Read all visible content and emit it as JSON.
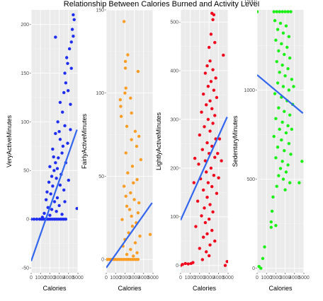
{
  "title": "Relationship Between Calories Burned and Activity Level",
  "chart_data": [
    {
      "type": "scatter",
      "xlabel": "Calories",
      "ylabel": "VeryActiveMinutes",
      "color": "#1f2ef0",
      "line_color": "#3366ee",
      "xlim": [
        0,
        5000
      ],
      "x_ticks": [
        0,
        1000,
        2000,
        3000,
        4000,
        5000
      ],
      "x_tick_labels": [
        "0",
        "1000",
        "2000",
        "3000",
        "4000",
        "5000"
      ],
      "ylim": [
        -55,
        215
      ],
      "y_ticks": [
        -50,
        0,
        50,
        100,
        150,
        200
      ],
      "y_tick_labels": [
        "-50",
        "0",
        "50",
        "100",
        "150",
        "200"
      ],
      "trend": {
        "x": [
          0,
          4900
        ],
        "y": [
          -43,
          92
        ]
      },
      "points": [
        [
          2600,
          187
        ],
        [
          4500,
          210
        ],
        [
          4600,
          205
        ],
        [
          4400,
          195
        ],
        [
          4500,
          188
        ],
        [
          4300,
          182
        ],
        [
          4100,
          175
        ],
        [
          3800,
          166
        ],
        [
          3900,
          160
        ],
        [
          4300,
          155
        ],
        [
          3600,
          150
        ],
        [
          3700,
          140
        ],
        [
          3950,
          132
        ],
        [
          3500,
          130
        ],
        [
          3100,
          120
        ],
        [
          4200,
          118
        ],
        [
          3350,
          110
        ],
        [
          2850,
          100
        ],
        [
          3600,
          96
        ],
        [
          4200,
          92
        ],
        [
          2600,
          88
        ],
        [
          3100,
          82
        ],
        [
          3900,
          78
        ],
        [
          2300,
          72
        ],
        [
          3300,
          68
        ],
        [
          2900,
          63
        ],
        [
          3700,
          58
        ],
        [
          2000,
          54
        ],
        [
          2450,
          50
        ],
        [
          3200,
          46
        ],
        [
          2700,
          42
        ],
        [
          1900,
          38
        ],
        [
          2300,
          34
        ],
        [
          3500,
          30
        ],
        [
          2100,
          26
        ],
        [
          2800,
          22
        ],
        [
          1600,
          20
        ],
        [
          2500,
          18
        ],
        [
          3000,
          14
        ],
        [
          1800,
          12
        ],
        [
          2200,
          10
        ],
        [
          2700,
          8
        ],
        [
          1400,
          6
        ],
        [
          3300,
          5
        ],
        [
          2000,
          4
        ],
        [
          1200,
          2
        ],
        [
          4900,
          11
        ],
        [
          0,
          0
        ],
        [
          300,
          0
        ],
        [
          600,
          0
        ],
        [
          900,
          0
        ],
        [
          1100,
          0
        ],
        [
          1300,
          0
        ],
        [
          1500,
          0
        ],
        [
          1700,
          0
        ],
        [
          1900,
          0
        ],
        [
          2100,
          0
        ],
        [
          2300,
          0
        ],
        [
          2500,
          0
        ],
        [
          2700,
          0
        ],
        [
          2900,
          0
        ],
        [
          3100,
          0
        ],
        [
          3300,
          0
        ],
        [
          3500,
          0
        ],
        [
          3700,
          0
        ],
        [
          2400,
          64
        ],
        [
          2600,
          58
        ],
        [
          3400,
          75
        ],
        [
          3000,
          90
        ],
        [
          2800,
          52
        ],
        [
          2200,
          44
        ],
        [
          3100,
          35
        ],
        [
          1700,
          28
        ],
        [
          3600,
          18
        ],
        [
          4000,
          40
        ]
      ]
    },
    {
      "type": "scatter",
      "xlabel": "Calories",
      "ylabel": "FairlyActiveMinutes",
      "color": "#f99d25",
      "line_color": "#3366ee",
      "xlim": [
        0,
        5000
      ],
      "x_ticks": [
        0,
        1000,
        2000,
        3000,
        4000,
        5000
      ],
      "x_tick_labels": [
        "0",
        "1000",
        "2000",
        "3000",
        "4000",
        "5000"
      ],
      "ylim": [
        -8,
        150
      ],
      "y_ticks": [
        0,
        50,
        100,
        150
      ],
      "y_tick_labels": [
        "0",
        "50",
        "100",
        "150"
      ],
      "trend": {
        "x": [
          0,
          4900
        ],
        "y": [
          -5,
          34
        ]
      },
      "points": [
        [
          1900,
          143
        ],
        [
          2300,
          123
        ],
        [
          2050,
          119
        ],
        [
          2050,
          115
        ],
        [
          3400,
          113
        ],
        [
          2100,
          103
        ],
        [
          2000,
          100
        ],
        [
          2600,
          97
        ],
        [
          1500,
          96
        ],
        [
          1550,
          92
        ],
        [
          2700,
          88
        ],
        [
          1600,
          86
        ],
        [
          2200,
          80
        ],
        [
          3100,
          77
        ],
        [
          3500,
          74
        ],
        [
          2700,
          72
        ],
        [
          3250,
          68
        ],
        [
          2100,
          64
        ],
        [
          3700,
          60
        ],
        [
          2800,
          56
        ],
        [
          2300,
          52
        ],
        [
          3300,
          48
        ],
        [
          1900,
          44
        ],
        [
          2600,
          40
        ],
        [
          3000,
          36
        ],
        [
          2200,
          32
        ],
        [
          3400,
          28
        ],
        [
          1700,
          24
        ],
        [
          2800,
          20
        ],
        [
          2400,
          16
        ],
        [
          3600,
          14
        ],
        [
          2000,
          12
        ],
        [
          3100,
          10
        ],
        [
          1800,
          8
        ],
        [
          2600,
          6
        ],
        [
          3300,
          4
        ],
        [
          2200,
          3
        ],
        [
          2900,
          2
        ],
        [
          4700,
          15
        ],
        [
          0,
          0
        ],
        [
          200,
          0
        ],
        [
          400,
          0
        ],
        [
          600,
          0
        ],
        [
          800,
          0
        ],
        [
          1000,
          0
        ],
        [
          1200,
          0
        ],
        [
          1400,
          0
        ],
        [
          1600,
          0
        ],
        [
          1800,
          0
        ],
        [
          2000,
          0
        ],
        [
          2200,
          0
        ],
        [
          2400,
          0
        ],
        [
          2600,
          0
        ],
        [
          2800,
          0
        ],
        [
          3000,
          0
        ],
        [
          3200,
          0
        ],
        [
          3400,
          0
        ],
        [
          2500,
          30
        ],
        [
          2900,
          46
        ],
        [
          3200,
          22
        ],
        [
          2100,
          38
        ],
        [
          2700,
          26
        ],
        [
          3500,
          34
        ]
      ]
    },
    {
      "type": "scatter",
      "xlabel": "Calories",
      "ylabel": "LightlyActiveMinutes",
      "color": "#f0041c",
      "line_color": "#3366ee",
      "xlim": [
        0,
        5000
      ],
      "x_ticks": [
        0,
        1000,
        2000,
        3000,
        4000,
        5000
      ],
      "x_tick_labels": [
        "0",
        "1000",
        "2000",
        "3000",
        "4000",
        "5000"
      ],
      "ylim": [
        -15,
        525
      ],
      "y_ticks": [
        0,
        100,
        200,
        300,
        400,
        500
      ],
      "y_tick_labels": [
        "0",
        "100",
        "200",
        "300",
        "400",
        "500"
      ],
      "trend": {
        "x": [
          0,
          4900
        ],
        "y": [
          93,
          305
        ]
      },
      "points": [
        [
          3300,
          518
        ],
        [
          3500,
          515
        ],
        [
          3400,
          505
        ],
        [
          3200,
          475
        ],
        [
          3600,
          458
        ],
        [
          3000,
          448
        ],
        [
          4500,
          432
        ],
        [
          3100,
          420
        ],
        [
          2800,
          410
        ],
        [
          3400,
          402
        ],
        [
          2600,
          395
        ],
        [
          3700,
          385
        ],
        [
          3200,
          378
        ],
        [
          2900,
          368
        ],
        [
          3500,
          360
        ],
        [
          2400,
          352
        ],
        [
          3800,
          345
        ],
        [
          3100,
          338
        ],
        [
          2700,
          330
        ],
        [
          3300,
          322
        ],
        [
          2200,
          315
        ],
        [
          3600,
          308
        ],
        [
          2900,
          300
        ],
        [
          3400,
          292
        ],
        [
          2500,
          285
        ],
        [
          3100,
          276
        ],
        [
          2000,
          268
        ],
        [
          3700,
          260
        ],
        [
          2800,
          252
        ],
        [
          3300,
          245
        ],
        [
          2300,
          238
        ],
        [
          3000,
          230
        ],
        [
          3600,
          222
        ],
        [
          2600,
          215
        ],
        [
          1900,
          208
        ],
        [
          3200,
          200
        ],
        [
          2700,
          192
        ],
        [
          3500,
          185
        ],
        [
          2100,
          178
        ],
        [
          2900,
          170
        ],
        [
          3300,
          162
        ],
        [
          2400,
          155
        ],
        [
          3800,
          148
        ],
        [
          2800,
          140
        ],
        [
          1800,
          132
        ],
        [
          3100,
          125
        ],
        [
          2500,
          118
        ],
        [
          3400,
          110
        ],
        [
          2200,
          102
        ],
        [
          3000,
          95
        ],
        [
          2600,
          88
        ],
        [
          1600,
          80
        ],
        [
          3300,
          72
        ],
        [
          2800,
          65
        ],
        [
          2400,
          58
        ],
        [
          3600,
          50
        ],
        [
          3100,
          42
        ],
        [
          2000,
          35
        ],
        [
          2700,
          28
        ],
        [
          3000,
          20
        ],
        [
          2300,
          12
        ],
        [
          4900,
          8
        ],
        [
          4700,
          0
        ],
        [
          0,
          0
        ],
        [
          200,
          2
        ],
        [
          500,
          4
        ],
        [
          800,
          3
        ],
        [
          1100,
          4
        ],
        [
          1300,
          6
        ],
        [
          3900,
          230
        ],
        [
          4100,
          260
        ],
        [
          4300,
          215
        ],
        [
          1400,
          170
        ],
        [
          1500,
          220
        ],
        [
          4000,
          180
        ]
      ]
    },
    {
      "type": "scatter",
      "xlabel": "Calories",
      "ylabel": "SedentaryMinutes",
      "color": "#19f014",
      "line_color": "#3366ee",
      "xlim": [
        0,
        5000
      ],
      "x_ticks": [
        0,
        1000,
        2000,
        3000,
        4000,
        5000
      ],
      "x_tick_labels": [
        "0",
        "1000",
        "2000",
        "3000",
        "4000",
        "5000"
      ],
      "ylim": [
        -25,
        1450
      ],
      "y_ticks": [
        0,
        500,
        1000,
        1500
      ],
      "y_tick_labels": [
        "0",
        "500",
        "1000",
        "1500"
      ],
      "trend": {
        "x": [
          0,
          4900
        ],
        "y": [
          1085,
          870
        ]
      },
      "points": [
        [
          0,
          1440
        ],
        [
          1800,
          1440
        ],
        [
          2100,
          1440
        ],
        [
          2400,
          1440
        ],
        [
          2700,
          1440
        ],
        [
          3000,
          1440
        ],
        [
          3300,
          1440
        ],
        [
          3600,
          1440
        ],
        [
          1900,
          1390
        ],
        [
          2500,
          1375
        ],
        [
          3100,
          1360
        ],
        [
          2200,
          1340
        ],
        [
          2800,
          1320
        ],
        [
          3400,
          1300
        ],
        [
          2000,
          1280
        ],
        [
          2600,
          1260
        ],
        [
          3200,
          1240
        ],
        [
          2300,
          1220
        ],
        [
          2900,
          1200
        ],
        [
          3500,
          1180
        ],
        [
          2100,
          1160
        ],
        [
          2700,
          1140
        ],
        [
          3300,
          1120
        ],
        [
          2400,
          1100
        ],
        [
          3000,
          1080
        ],
        [
          3700,
          1060
        ],
        [
          2200,
          1040
        ],
        [
          2800,
          1020
        ],
        [
          3400,
          1000
        ],
        [
          1900,
          980
        ],
        [
          2600,
          960
        ],
        [
          3200,
          940
        ],
        [
          3800,
          920
        ],
        [
          2300,
          900
        ],
        [
          2900,
          880
        ],
        [
          3500,
          860
        ],
        [
          2000,
          840
        ],
        [
          2700,
          820
        ],
        [
          3300,
          800
        ],
        [
          2400,
          780
        ],
        [
          3100,
          760
        ],
        [
          1800,
          740
        ],
        [
          2600,
          720
        ],
        [
          3400,
          700
        ],
        [
          2200,
          680
        ],
        [
          2900,
          660
        ],
        [
          3600,
          640
        ],
        [
          2000,
          620
        ],
        [
          2700,
          600
        ],
        [
          3300,
          580
        ],
        [
          2500,
          560
        ],
        [
          3100,
          540
        ],
        [
          2300,
          520
        ],
        [
          2800,
          500
        ],
        [
          3500,
          480
        ],
        [
          2100,
          460
        ],
        [
          3000,
          440
        ],
        [
          1700,
          400
        ],
        [
          1600,
          320
        ],
        [
          2000,
          240
        ],
        [
          1500,
          230
        ],
        [
          800,
          120
        ],
        [
          600,
          55
        ],
        [
          200,
          10
        ],
        [
          400,
          0
        ],
        [
          4500,
          480
        ],
        [
          4800,
          600
        ],
        [
          1500,
          260
        ],
        [
          3700,
          780
        ],
        [
          3900,
          1020
        ]
      ]
    }
  ]
}
